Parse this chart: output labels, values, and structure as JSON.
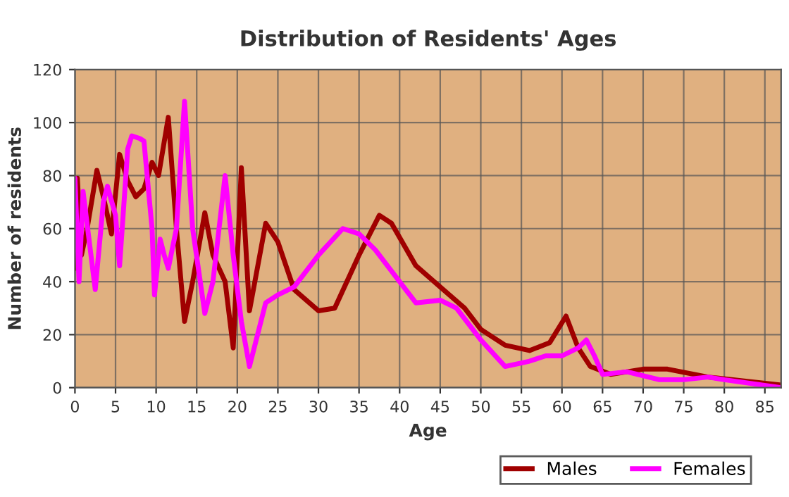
{
  "chart_data": {
    "type": "line",
    "title": "Distribution of Residents' Ages",
    "xlabel": "Age",
    "ylabel": "Number of residents",
    "xlim": [
      0,
      87
    ],
    "xticks": [
      0,
      5,
      10,
      15,
      20,
      25,
      30,
      35,
      40,
      45,
      50,
      55,
      60,
      65,
      70,
      75,
      80,
      85
    ],
    "ylim": [
      0,
      120
    ],
    "yticks": [
      0,
      20,
      40,
      60,
      80,
      100,
      120
    ],
    "grid": true,
    "legend": "bottom",
    "marker": "none",
    "line_style": "solid",
    "series": [
      {
        "name": "Males",
        "color": "#a00000",
        "x": [
          0,
          0.3,
          0.8,
          1.5,
          2.7,
          3.5,
          4.5,
          5.5,
          6.5,
          7.5,
          8.5,
          9.5,
          10.3,
          11.5,
          12.5,
          13.5,
          14.5,
          16,
          17,
          18.5,
          19.5,
          20.5,
          21.5,
          23.5,
          25,
          27,
          30,
          32,
          35,
          37.5,
          39,
          42,
          45,
          48,
          50,
          53,
          56,
          58.5,
          60.5,
          62,
          63.5,
          66,
          70,
          73,
          78,
          87
        ],
        "values": [
          45,
          79,
          50,
          60,
          82,
          72,
          58,
          88,
          78,
          72,
          75,
          85,
          80,
          102,
          60,
          25,
          40,
          66,
          50,
          40,
          15,
          83,
          29,
          62,
          55,
          37,
          29,
          30,
          50,
          65,
          62,
          46,
          38,
          30,
          22,
          16,
          14,
          17,
          27,
          15,
          8,
          5,
          7,
          7,
          4,
          1
        ]
      },
      {
        "name": "Females",
        "color": "#ff00ff",
        "x": [
          0,
          0.5,
          1,
          2.5,
          3.5,
          4,
          5,
          5.5,
          6.5,
          7,
          8,
          8.5,
          9.5,
          9.8,
          10.5,
          11,
          11.5,
          12.5,
          13.5,
          14.5,
          16,
          17,
          18.5,
          19.5,
          20.5,
          21.5,
          22.5,
          23.5,
          25,
          27,
          30,
          33,
          35,
          37,
          40,
          42,
          45,
          47,
          50,
          53,
          56,
          58,
          60,
          62,
          63,
          64,
          65,
          68,
          72,
          75,
          78,
          80,
          87
        ],
        "values": [
          79,
          40,
          74,
          37,
          70,
          76,
          65,
          46,
          90,
          95,
          94,
          93,
          60,
          35,
          56,
          50,
          45,
          60,
          108,
          60,
          28,
          40,
          80,
          50,
          25,
          8,
          20,
          32,
          35,
          38,
          50,
          60,
          58,
          52,
          40,
          32,
          33,
          30,
          18,
          8,
          10,
          12,
          12,
          15,
          18,
          12,
          5,
          6,
          3,
          3,
          4,
          3,
          0
        ]
      }
    ]
  }
}
